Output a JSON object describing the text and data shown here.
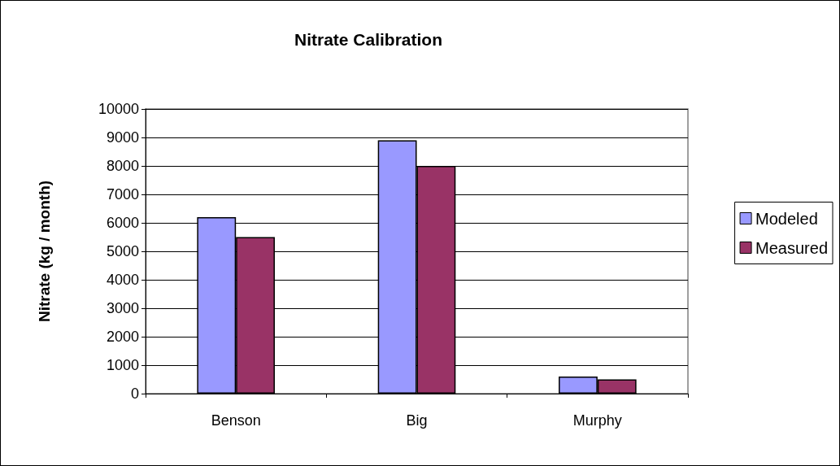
{
  "chart_data": {
    "type": "bar",
    "title": "Nitrate Calibration",
    "ylabel": "Nitrate (kg / month)",
    "categories": [
      "Benson",
      "Big",
      "Murphy"
    ],
    "series": [
      {
        "name": "Modeled",
        "color": "#9999ff",
        "values": [
          6200,
          8900,
          600
        ]
      },
      {
        "name": "Measured",
        "color": "#993366",
        "values": [
          5500,
          8000,
          500
        ]
      }
    ],
    "ylim": [
      0,
      10000
    ],
    "yticks": [
      0,
      1000,
      2000,
      3000,
      4000,
      5000,
      6000,
      7000,
      8000,
      9000,
      10000
    ],
    "grid": "y",
    "legend": "right"
  }
}
